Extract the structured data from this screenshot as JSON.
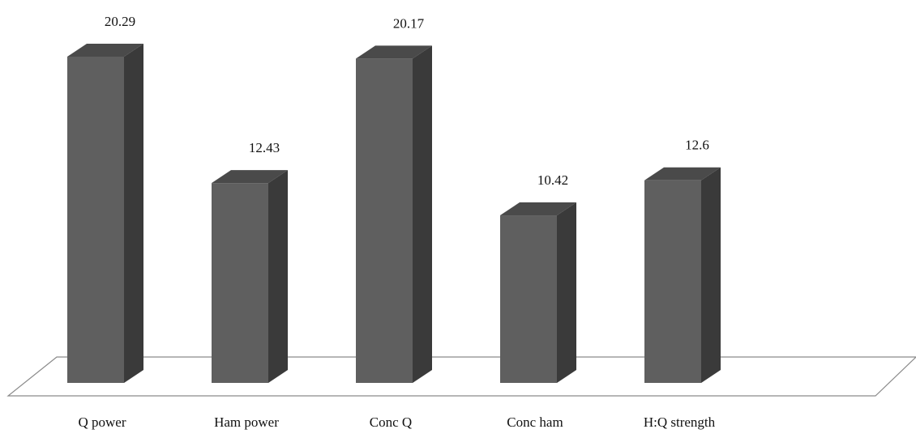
{
  "chart_data": {
    "type": "bar",
    "categories": [
      "Q power",
      "Ham power",
      "Conc Q",
      "Conc ham",
      "H:Q strength"
    ],
    "values": [
      20.29,
      12.43,
      20.17,
      10.42,
      12.6
    ],
    "data_labels": [
      "20.29",
      "12.43",
      "20.17",
      "10.42",
      "12.6"
    ],
    "ylim": [
      0,
      20.29
    ],
    "grid": false,
    "legend": "none",
    "style": "3d-column",
    "colors": {
      "front": "#5f5f5f",
      "side": "#3a3a3a",
      "top": "#4a4a4a",
      "floor_stroke": "#8a8a8a"
    }
  }
}
